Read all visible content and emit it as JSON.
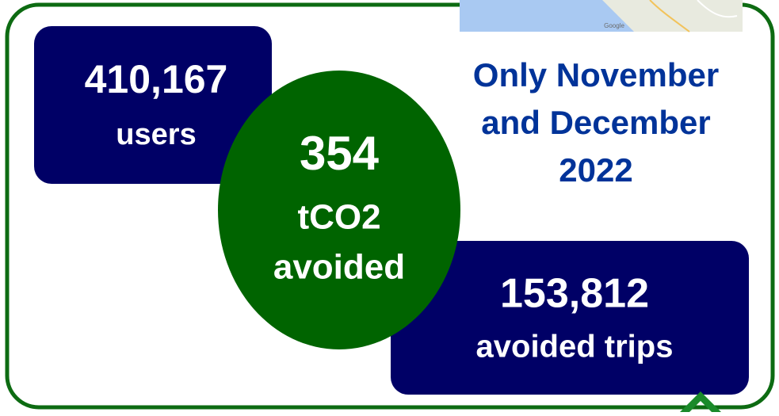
{
  "users": {
    "value": "410,167",
    "label": "users"
  },
  "co2": {
    "value": "354",
    "unit": "tCO2",
    "label": "avoided"
  },
  "period": {
    "lines": [
      "Only November",
      "and December",
      "2022"
    ]
  },
  "trips": {
    "value": "153,812",
    "label": "avoided trips"
  },
  "map": {
    "attribution": "Google"
  }
}
